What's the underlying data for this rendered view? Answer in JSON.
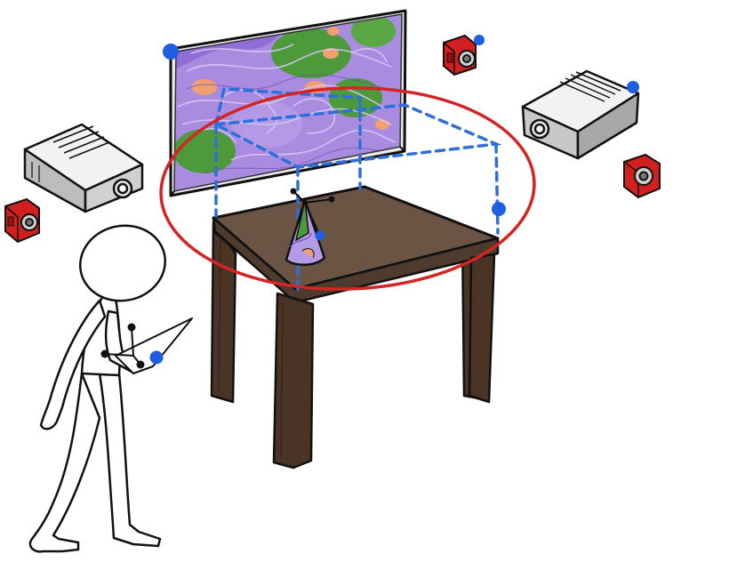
{
  "scene": {
    "background_color": "#ffffff",
    "colors": {
      "outline": "#111111",
      "table_top": "#6b5444",
      "table_leg": "#4a3426",
      "tracking_dashes": "#2f6fdc",
      "marker_dot": "#1f5ee0",
      "highlight_ellipse": "#d42424",
      "projector_body": "#d9d9d9",
      "camera_body": "#d21f1f",
      "screen_frame": "#e8e8e8",
      "vis_purple": "#a98be0",
      "vis_green": "#4d9a3a",
      "vis_orange": "#f0a070"
    },
    "elements": {
      "display_screen": "display-screen",
      "table": "table",
      "tracked_cone": "tracked-cone",
      "projectors": [
        "projector-left",
        "projector-right"
      ],
      "cameras": [
        "camera-top-right",
        "camera-left",
        "camera-right-lower"
      ],
      "user": "stick-figure-user",
      "handheld_device": "handheld-device"
    }
  }
}
